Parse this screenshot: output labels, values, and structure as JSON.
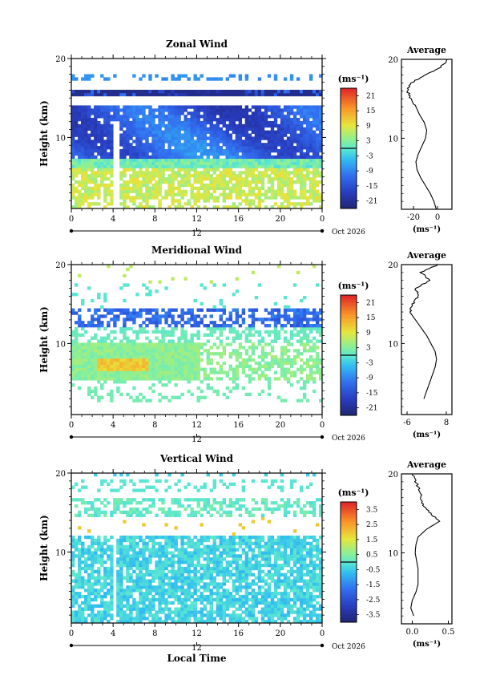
{
  "chart_data": [
    {
      "type": "heatmap",
      "title": "Zonal Wind",
      "ylabel": "Height (km)",
      "xlabel": "",
      "x_ticks": [
        "0",
        "4",
        "8",
        "12",
        "16",
        "20",
        "0"
      ],
      "y_ticks": [
        "10",
        "20"
      ],
      "ylim": [
        1,
        20
      ],
      "xlim": [
        0,
        24
      ],
      "date_label": "Oct 2026",
      "date_tick": "12",
      "colorbar": {
        "unit": "(ms⁻¹)",
        "ticks": [
          "21",
          "15",
          "9",
          "3",
          "-3",
          "-9",
          "-15",
          "-21"
        ],
        "range": [
          -24,
          24
        ]
      },
      "profile": {
        "title": "Average",
        "xlabel": "(ms⁻¹)",
        "x_ticks": [
          "-20",
          "0"
        ],
        "xlim": [
          -30,
          12
        ],
        "y_tick": "10",
        "y_top": "20",
        "height": [
          1,
          2,
          3,
          4,
          5,
          6,
          7,
          8,
          9,
          10,
          11,
          12,
          13,
          14,
          15,
          16,
          17,
          18,
          19,
          20
        ],
        "values": [
          -1,
          -3,
          -6,
          -10,
          -14,
          -17,
          -18,
          -16,
          -13,
          -10,
          -9,
          -11,
          -15,
          -18,
          -22,
          -25,
          -22,
          -10,
          3,
          8
        ]
      }
    },
    {
      "type": "heatmap",
      "title": "Meridional Wind",
      "ylabel": "Height (km)",
      "xlabel": "",
      "x_ticks": [
        "0",
        "4",
        "8",
        "12",
        "16",
        "20",
        "0"
      ],
      "y_ticks": [
        "10",
        "20"
      ],
      "ylim": [
        1,
        20
      ],
      "xlim": [
        0,
        24
      ],
      "date_label": "Oct 2026",
      "date_tick": "12",
      "colorbar": {
        "unit": "(ms⁻¹)",
        "ticks": [
          "21",
          "15",
          "9",
          "3",
          "-3",
          "-9",
          "-15",
          "-21"
        ],
        "range": [
          -24,
          24
        ]
      },
      "profile": {
        "title": "Average",
        "xlabel": "(ms⁻¹)",
        "x_ticks": [
          "-6",
          "8"
        ],
        "xlim": [
          -8,
          10
        ],
        "y_tick": "10",
        "y_top": "20",
        "height": [
          3,
          4,
          5,
          6,
          7,
          8,
          9,
          10,
          11,
          12,
          13,
          14,
          15,
          16,
          17,
          18,
          19,
          20
        ],
        "values": [
          0,
          1,
          2,
          3,
          4,
          4.5,
          4,
          2.5,
          1,
          -1,
          -3,
          -5,
          -4,
          -2,
          -3,
          2,
          -1,
          5
        ]
      }
    },
    {
      "type": "heatmap",
      "title": "Vertical Wind",
      "ylabel": "Height (km)",
      "xlabel": "Local Time",
      "x_ticks": [
        "0",
        "4",
        "8",
        "12",
        "16",
        "20",
        "0"
      ],
      "y_ticks": [
        "10",
        "20"
      ],
      "ylim": [
        1,
        20
      ],
      "xlim": [
        0,
        24
      ],
      "date_label": "Oct 2026",
      "date_tick": "12",
      "colorbar": {
        "unit": "(ms⁻¹)",
        "ticks": [
          "3.5",
          "2.5",
          "1.5",
          "0.5",
          "-0.5",
          "-1.5",
          "-2.5",
          "-3.5"
        ],
        "range": [
          -4,
          4
        ]
      },
      "profile": {
        "title": "Average",
        "xlabel": "(ms⁻¹)",
        "x_ticks": [
          "0.0",
          "0.5"
        ],
        "xlim": [
          -0.15,
          0.55
        ],
        "y_tick": "10",
        "y_top": "20",
        "height": [
          2,
          3,
          4,
          5,
          6,
          7,
          8,
          9,
          10,
          11,
          12,
          13,
          14,
          15,
          16,
          17,
          18,
          19,
          20
        ],
        "values": [
          0.02,
          -0.02,
          0.0,
          0.05,
          0.08,
          0.08,
          0.08,
          0.06,
          0.04,
          0.05,
          0.08,
          0.2,
          0.38,
          0.25,
          0.15,
          0.12,
          0.1,
          0.05,
          0.0
        ]
      }
    }
  ]
}
